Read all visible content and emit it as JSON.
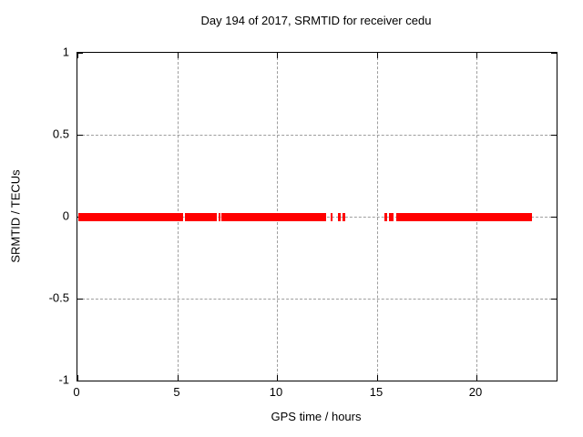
{
  "chart_data": {
    "type": "scatter",
    "title": "Day 194 of 2017, SRMTID for receiver cedu",
    "xlabel": "GPS time / hours",
    "ylabel": "SRMTID / TECUs",
    "xlim": [
      0,
      24
    ],
    "ylim": [
      -1,
      1
    ],
    "xticks": [
      0,
      5,
      10,
      15,
      20
    ],
    "yticks": [
      -1,
      -0.5,
      0,
      0.5,
      1
    ],
    "grid": true,
    "grid_color": "#9e9e9e",
    "axis_color": "#000000",
    "legend": "none",
    "series": [
      {
        "name": "SRMTID",
        "color": "#ff0000",
        "y": 0,
        "band_halfwidth": 0.025,
        "segments": [
          [
            0.05,
            5.29
          ],
          [
            5.4,
            6.98
          ],
          [
            7.06,
            7.14
          ],
          [
            7.21,
            12.46
          ],
          [
            12.68,
            12.78
          ],
          [
            13.05,
            13.19
          ],
          [
            13.28,
            13.42
          ],
          [
            15.37,
            15.51
          ],
          [
            15.6,
            15.83
          ],
          [
            15.97,
            22.78
          ]
        ]
      }
    ]
  }
}
